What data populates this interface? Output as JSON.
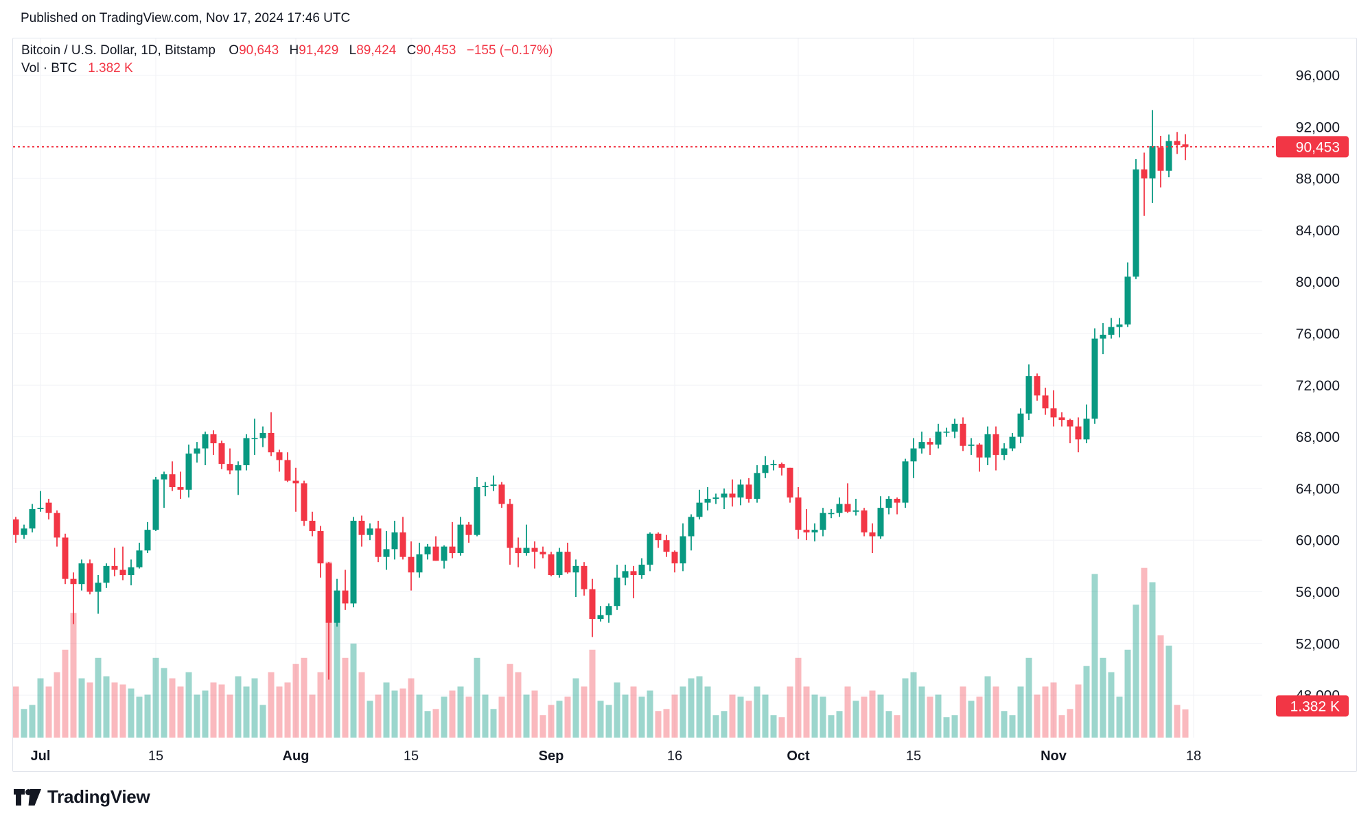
{
  "header": {
    "published": "Published on TradingView.com, Nov 17, 2024 17:46 UTC"
  },
  "legend": {
    "title": "Bitcoin / U.S. Dollar, 1D, Bitstamp",
    "open_label": "O",
    "open": "90,643",
    "high_label": "H",
    "high": "91,429",
    "low_label": "L",
    "low": "89,424",
    "close_label": "C",
    "close": "90,453",
    "change": "−155 (−0.17%)",
    "vol_label": "Vol · BTC",
    "vol_value": "1.382 K"
  },
  "footer": {
    "brand": "TradingView"
  },
  "colors": {
    "text": "#131722",
    "accent_red": "#f23645",
    "candle_up": "#089981",
    "candle_down": "#f23645",
    "volume_up": "rgba(8,153,129,0.40)",
    "volume_down": "rgba(242,54,69,0.35)",
    "grid": "#f0f2f6",
    "card_border": "#e0e3eb",
    "badge_text": "#ffffff"
  },
  "chart_data": {
    "type": "candlestick_with_volume",
    "symbol": "Bitcoin / U.S. Dollar",
    "interval": "1D",
    "exchange": "Bitstamp",
    "current": {
      "open": 90643,
      "high": 91429,
      "low": 89424,
      "close": 90453,
      "change": -155,
      "change_pct": -0.17,
      "volume_k_btc": 1.382
    },
    "last_price_label": "90,453",
    "last_volume_label": "1.382 K",
    "y_axis": {
      "min": 47000,
      "max": 97000,
      "tick_step": 4000,
      "ticks": [
        {
          "price": 96000,
          "label": "96,000"
        },
        {
          "price": 92000,
          "label": "92,000"
        },
        {
          "price": 88000,
          "label": "88,000"
        },
        {
          "price": 84000,
          "label": "84,000"
        },
        {
          "price": 80000,
          "label": "80,000"
        },
        {
          "price": 76000,
          "label": "76,000"
        },
        {
          "price": 72000,
          "label": "72,000"
        },
        {
          "price": 68000,
          "label": "68,000"
        },
        {
          "price": 64000,
          "label": "64,000"
        },
        {
          "price": 60000,
          "label": "60,000"
        },
        {
          "price": 56000,
          "label": "56,000"
        },
        {
          "price": 52000,
          "label": "52,000"
        },
        {
          "price": 48000,
          "label": "48,000"
        }
      ]
    },
    "x_axis": {
      "ticks": [
        {
          "label": "Jul",
          "index": 3,
          "bold": true
        },
        {
          "label": "15",
          "index": 17,
          "bold": false
        },
        {
          "label": "Aug",
          "index": 34,
          "bold": true
        },
        {
          "label": "15",
          "index": 48,
          "bold": false
        },
        {
          "label": "Sep",
          "index": 65,
          "bold": true
        },
        {
          "label": "16",
          "index": 80,
          "bold": false
        },
        {
          "label": "Oct",
          "index": 95,
          "bold": true
        },
        {
          "label": "15",
          "index": 109,
          "bold": false
        },
        {
          "label": "Nov",
          "index": 126,
          "bold": true
        },
        {
          "label": "18",
          "index": 143,
          "bold": false
        }
      ]
    },
    "columns": [
      "date",
      "open",
      "high",
      "low",
      "close",
      "volume_k_btc"
    ],
    "candles": [
      [
        "2024-06-28",
        61600,
        61800,
        59800,
        60400,
        2.5
      ],
      [
        "2024-06-29",
        60400,
        61200,
        60100,
        60900,
        1.4
      ],
      [
        "2024-06-30",
        60900,
        62800,
        60600,
        62400,
        1.6
      ],
      [
        "2024-07-01",
        62400,
        63800,
        62200,
        62500,
        2.9
      ],
      [
        "2024-07-02",
        62900,
        63200,
        61600,
        62100,
        2.5
      ],
      [
        "2024-07-03",
        62100,
        62300,
        59500,
        60200,
        3.2
      ],
      [
        "2024-07-04",
        60200,
        60500,
        56600,
        57000,
        4.3
      ],
      [
        "2024-07-05",
        57000,
        57500,
        53500,
        56600,
        6.1
      ],
      [
        "2024-07-06",
        56600,
        58500,
        56100,
        58200,
        2.9
      ],
      [
        "2024-07-07",
        58200,
        58500,
        55800,
        56000,
        2.7
      ],
      [
        "2024-07-08",
        56000,
        57300,
        54300,
        56700,
        3.9
      ],
      [
        "2024-07-09",
        56700,
        58200,
        56300,
        58000,
        3.0
      ],
      [
        "2024-07-10",
        58000,
        59400,
        57200,
        57700,
        2.7
      ],
      [
        "2024-07-11",
        57700,
        59500,
        56900,
        57300,
        2.6
      ],
      [
        "2024-07-12",
        57300,
        58500,
        56500,
        57900,
        2.4
      ],
      [
        "2024-07-13",
        57900,
        59800,
        57800,
        59200,
        2.0
      ],
      [
        "2024-07-14",
        59200,
        61400,
        59000,
        60800,
        2.1
      ],
      [
        "2024-07-15",
        60800,
        64900,
        60700,
        64700,
        3.9
      ],
      [
        "2024-07-16",
        64700,
        65300,
        62500,
        65100,
        3.4
      ],
      [
        "2024-07-17",
        65100,
        66100,
        63800,
        64100,
        2.9
      ],
      [
        "2024-07-18",
        64100,
        65300,
        63200,
        63900,
        2.5
      ],
      [
        "2024-07-19",
        63900,
        67400,
        63300,
        66700,
        3.2
      ],
      [
        "2024-07-20",
        66700,
        67600,
        66000,
        67100,
        2.1
      ],
      [
        "2024-07-21",
        67100,
        68400,
        65800,
        68200,
        2.3
      ],
      [
        "2024-07-22",
        68200,
        68500,
        66600,
        67500,
        2.7
      ],
      [
        "2024-07-23",
        67500,
        67700,
        65500,
        65900,
        2.6
      ],
      [
        "2024-07-24",
        65900,
        67100,
        65100,
        65400,
        2.1
      ],
      [
        "2024-07-25",
        65400,
        66100,
        63500,
        65800,
        3.0
      ],
      [
        "2024-07-26",
        65800,
        68200,
        65400,
        67900,
        2.5
      ],
      [
        "2024-07-27",
        67900,
        69400,
        66600,
        67900,
        2.9
      ],
      [
        "2024-07-28",
        67900,
        68800,
        67200,
        68300,
        1.6
      ],
      [
        "2024-07-29",
        68300,
        69900,
        66500,
        66800,
        3.2
      ],
      [
        "2024-07-30",
        66800,
        67000,
        65300,
        66200,
        2.5
      ],
      [
        "2024-07-31",
        66200,
        66800,
        64500,
        64600,
        2.7
      ],
      [
        "2024-08-01",
        64600,
        65600,
        62200,
        64400,
        3.6
      ],
      [
        "2024-08-02",
        64400,
        64600,
        61100,
        61500,
        3.9
      ],
      [
        "2024-08-03",
        61500,
        62200,
        60300,
        60700,
        2.1
      ],
      [
        "2024-08-04",
        60700,
        61100,
        57100,
        58200,
        3.2
      ],
      [
        "2024-08-05",
        58200,
        58300,
        49200,
        53600,
        8.6
      ],
      [
        "2024-08-06",
        53600,
        57000,
        53300,
        56100,
        5.7
      ],
      [
        "2024-08-07",
        56100,
        57700,
        54600,
        55100,
        3.9
      ],
      [
        "2024-08-08",
        55100,
        61800,
        54800,
        61500,
        4.6
      ],
      [
        "2024-08-09",
        61500,
        61900,
        59500,
        60400,
        3.2
      ],
      [
        "2024-08-10",
        60400,
        61300,
        60000,
        60900,
        1.8
      ],
      [
        "2024-08-11",
        60900,
        61500,
        58300,
        58700,
        2.1
      ],
      [
        "2024-08-12",
        58700,
        60700,
        57700,
        59300,
        2.7
      ],
      [
        "2024-08-13",
        59300,
        61500,
        58500,
        60600,
        2.3
      ],
      [
        "2024-08-14",
        60600,
        61800,
        58500,
        58700,
        2.4
      ],
      [
        "2024-08-15",
        58700,
        59900,
        56100,
        57500,
        2.9
      ],
      [
        "2024-08-16",
        57500,
        59800,
        57100,
        58900,
        2.1
      ],
      [
        "2024-08-17",
        58900,
        59700,
        58500,
        59500,
        1.3
      ],
      [
        "2024-08-18",
        59500,
        60300,
        58400,
        58400,
        1.4
      ],
      [
        "2024-08-19",
        58400,
        59600,
        57800,
        59500,
        2.0
      ],
      [
        "2024-08-20",
        59500,
        61400,
        58600,
        59000,
        2.3
      ],
      [
        "2024-08-21",
        59000,
        61800,
        58800,
        61200,
        2.5
      ],
      [
        "2024-08-22",
        61200,
        61400,
        59800,
        60400,
        2.0
      ],
      [
        "2024-08-23",
        60400,
        64900,
        60300,
        64100,
        3.9
      ],
      [
        "2024-08-24",
        64100,
        64500,
        63400,
        64200,
        2.1
      ],
      [
        "2024-08-25",
        64200,
        65000,
        63800,
        64300,
        1.4
      ],
      [
        "2024-08-26",
        64300,
        64500,
        62500,
        62800,
        2.0
      ],
      [
        "2024-08-27",
        62800,
        63200,
        58100,
        59400,
        3.6
      ],
      [
        "2024-08-28",
        59400,
        60200,
        57900,
        59000,
        3.2
      ],
      [
        "2024-08-29",
        59000,
        61200,
        58800,
        59400,
        2.1
      ],
      [
        "2024-08-30",
        59400,
        59900,
        57800,
        59100,
        2.3
      ],
      [
        "2024-08-31",
        59100,
        59500,
        58600,
        58900,
        1.1
      ],
      [
        "2024-09-01",
        58900,
        59100,
        57200,
        57300,
        1.6
      ],
      [
        "2024-09-02",
        57300,
        59400,
        57100,
        59100,
        1.8
      ],
      [
        "2024-09-03",
        59100,
        59800,
        57400,
        57500,
        2.0
      ],
      [
        "2024-09-04",
        57500,
        58500,
        55600,
        58000,
        2.9
      ],
      [
        "2024-09-05",
        58000,
        58300,
        55700,
        56200,
        2.5
      ],
      [
        "2024-09-06",
        56200,
        57000,
        52500,
        53900,
        4.3
      ],
      [
        "2024-09-07",
        53900,
        54900,
        53700,
        54200,
        1.8
      ],
      [
        "2024-09-08",
        54200,
        55100,
        53600,
        54900,
        1.6
      ],
      [
        "2024-09-09",
        54900,
        58100,
        54600,
        57100,
        2.7
      ],
      [
        "2024-09-10",
        57100,
        58100,
        56500,
        57600,
        2.1
      ],
      [
        "2024-09-11",
        57600,
        58000,
        55500,
        57300,
        2.5
      ],
      [
        "2024-09-12",
        57300,
        58600,
        57000,
        58100,
        2.0
      ],
      [
        "2024-09-13",
        58100,
        60600,
        57600,
        60500,
        2.3
      ],
      [
        "2024-09-14",
        60500,
        60600,
        59400,
        60000,
        1.3
      ],
      [
        "2024-09-15",
        60000,
        60400,
        58700,
        59100,
        1.4
      ],
      [
        "2024-09-16",
        59100,
        59200,
        57500,
        58200,
        2.1
      ],
      [
        "2024-09-17",
        58200,
        61300,
        57600,
        60300,
        2.5
      ],
      [
        "2024-09-18",
        60300,
        62000,
        59200,
        61800,
        2.9
      ],
      [
        "2024-09-19",
        61800,
        63900,
        61600,
        62900,
        3.0
      ],
      [
        "2024-09-20",
        62900,
        64100,
        62300,
        63200,
        2.5
      ],
      [
        "2024-09-21",
        63200,
        63600,
        62800,
        63300,
        1.1
      ],
      [
        "2024-09-22",
        63300,
        64000,
        62400,
        63600,
        1.3
      ],
      [
        "2024-09-23",
        63600,
        64700,
        62600,
        63300,
        2.1
      ],
      [
        "2024-09-24",
        63300,
        64700,
        62700,
        64300,
        2.0
      ],
      [
        "2024-09-25",
        64300,
        64800,
        62900,
        63200,
        1.8
      ],
      [
        "2024-09-26",
        63200,
        65800,
        62900,
        65200,
        2.5
      ],
      [
        "2024-09-27",
        65200,
        66500,
        64800,
        65800,
        2.1
      ],
      [
        "2024-09-28",
        65800,
        66200,
        65400,
        65900,
        1.1
      ],
      [
        "2024-09-29",
        65900,
        66000,
        65000,
        65600,
        1.0
      ],
      [
        "2024-09-30",
        65600,
        65600,
        62900,
        63300,
        2.5
      ],
      [
        "2024-10-01",
        63300,
        64100,
        60100,
        60800,
        3.9
      ],
      [
        "2024-10-02",
        60800,
        62400,
        60000,
        60600,
        2.5
      ],
      [
        "2024-10-03",
        60600,
        61300,
        59900,
        60800,
        2.1
      ],
      [
        "2024-10-04",
        60800,
        62500,
        60300,
        62100,
        2.0
      ],
      [
        "2024-10-05",
        62100,
        62400,
        61700,
        62100,
        1.1
      ],
      [
        "2024-10-06",
        62100,
        63300,
        61800,
        62800,
        1.3
      ],
      [
        "2024-10-07",
        62800,
        64400,
        62100,
        62200,
        2.5
      ],
      [
        "2024-10-08",
        62200,
        63200,
        61900,
        62300,
        1.8
      ],
      [
        "2024-10-09",
        62300,
        62500,
        60300,
        60600,
        2.0
      ],
      [
        "2024-10-10",
        60600,
        61300,
        59000,
        60300,
        2.3
      ],
      [
        "2024-10-11",
        60300,
        63400,
        60100,
        62500,
        2.1
      ],
      [
        "2024-10-12",
        62500,
        63400,
        62000,
        63200,
        1.3
      ],
      [
        "2024-10-13",
        63200,
        63300,
        62000,
        62900,
        1.1
      ],
      [
        "2024-10-14",
        62900,
        66300,
        62500,
        66100,
        2.9
      ],
      [
        "2024-10-15",
        66100,
        67900,
        64800,
        67100,
        3.2
      ],
      [
        "2024-10-16",
        67100,
        68400,
        66700,
        67600,
        2.5
      ],
      [
        "2024-10-17",
        67600,
        67900,
        66600,
        67400,
        2.0
      ],
      [
        "2024-10-18",
        67400,
        69000,
        67100,
        68400,
        2.1
      ],
      [
        "2024-10-19",
        68400,
        68700,
        68000,
        68400,
        1.0
      ],
      [
        "2024-10-20",
        68400,
        69400,
        67900,
        69000,
        1.1
      ],
      [
        "2024-10-21",
        69000,
        69500,
        66900,
        67300,
        2.5
      ],
      [
        "2024-10-22",
        67300,
        67900,
        66600,
        67400,
        1.8
      ],
      [
        "2024-10-23",
        67400,
        67500,
        65300,
        66400,
        2.0
      ],
      [
        "2024-10-24",
        66400,
        68800,
        65800,
        68200,
        3.0
      ],
      [
        "2024-10-25",
        68200,
        68800,
        65400,
        66600,
        2.5
      ],
      [
        "2024-10-26",
        66600,
        67500,
        66200,
        67100,
        1.3
      ],
      [
        "2024-10-27",
        67100,
        68300,
        66900,
        68000,
        1.1
      ],
      [
        "2024-10-28",
        68000,
        70200,
        67500,
        69800,
        2.5
      ],
      [
        "2024-10-29",
        69800,
        73600,
        69300,
        72700,
        3.9
      ],
      [
        "2024-10-30",
        72700,
        72900,
        70800,
        71200,
        2.1
      ],
      [
        "2024-10-31",
        71200,
        71800,
        69700,
        70200,
        2.5
      ],
      [
        "2024-11-01",
        70200,
        71600,
        68800,
        69500,
        2.7
      ],
      [
        "2024-11-02",
        69500,
        69900,
        68800,
        69300,
        1.1
      ],
      [
        "2024-11-03",
        69300,
        69400,
        67500,
        68800,
        1.4
      ],
      [
        "2024-11-04",
        68800,
        69500,
        66800,
        67800,
        2.6
      ],
      [
        "2024-11-05",
        67800,
        70500,
        67500,
        69400,
        3.5
      ],
      [
        "2024-11-06",
        69400,
        76400,
        69000,
        75600,
        8.0
      ],
      [
        "2024-11-07",
        75600,
        76800,
        74400,
        75900,
        3.9
      ],
      [
        "2024-11-08",
        75900,
        77200,
        75600,
        76500,
        3.2
      ],
      [
        "2024-11-09",
        76500,
        77200,
        75700,
        76700,
        2.0
      ],
      [
        "2024-11-10",
        76700,
        81500,
        76500,
        80400,
        4.3
      ],
      [
        "2024-11-11",
        80400,
        89500,
        80200,
        88700,
        6.5
      ],
      [
        "2024-11-12",
        88700,
        90000,
        85100,
        88000,
        8.3
      ],
      [
        "2024-11-13",
        88000,
        93300,
        86100,
        90500,
        7.6
      ],
      [
        "2024-11-14",
        90400,
        91300,
        87300,
        88600,
        5.0
      ],
      [
        "2024-11-15",
        88600,
        91400,
        88100,
        90900,
        4.5
      ],
      [
        "2024-11-16",
        90900,
        91600,
        89900,
        90600,
        1.6
      ],
      [
        "2024-11-17",
        90643,
        91429,
        89424,
        90453,
        1.382
      ]
    ]
  }
}
